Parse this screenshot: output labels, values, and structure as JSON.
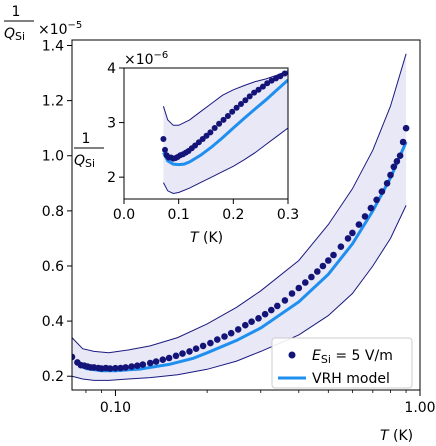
{
  "chart_data": [
    {
      "type": "scatter",
      "xscale": "log",
      "xlim": [
        0.072,
        1.0
      ],
      "ylim": [
        0.15,
        1.42
      ],
      "xlabel": {
        "italic": "T",
        "rest": " (K)"
      },
      "ylabel": {
        "num": "1",
        "den": "Q",
        "sub": "Si"
      },
      "offset_text": {
        "base": "×10",
        "exp": "−5"
      },
      "xticks": [
        {
          "value": 0.1,
          "label": "0.10"
        },
        {
          "value": 1.0,
          "label": "1.00"
        }
      ],
      "yticks": [
        0.2,
        0.4,
        0.6,
        0.8,
        1.0,
        1.2,
        1.4
      ],
      "ytick_labels": [
        "0.2",
        "0.4",
        "0.6",
        "0.8",
        "1.0",
        "1.2",
        "1.4"
      ],
      "legend": {
        "placement": "lower-right",
        "entries": [
          {
            "kind": "marker",
            "label_main": "E",
            "label_sub": "Si",
            "label_rest": " = 5 V/m"
          },
          {
            "kind": "line",
            "label": "VRH model"
          }
        ]
      },
      "band": {
        "color": "#e8e8f7",
        "edge_color": "#1a1a80",
        "x": [
          0.072,
          0.078,
          0.085,
          0.095,
          0.11,
          0.13,
          0.16,
          0.2,
          0.25,
          0.3,
          0.4,
          0.5,
          0.6,
          0.7,
          0.8,
          0.9
        ],
        "upper": [
          0.34,
          0.3,
          0.29,
          0.285,
          0.295,
          0.31,
          0.34,
          0.39,
          0.45,
          0.51,
          0.62,
          0.75,
          0.88,
          1.02,
          1.18,
          1.37
        ],
        "lower": [
          0.2,
          0.19,
          0.185,
          0.185,
          0.19,
          0.195,
          0.205,
          0.225,
          0.255,
          0.29,
          0.35,
          0.42,
          0.5,
          0.6,
          0.7,
          0.82
        ]
      },
      "series": [
        {
          "name": "VRH model",
          "kind": "line",
          "color": "#1f8fef",
          "x": [
            0.075,
            0.08,
            0.09,
            0.1,
            0.12,
            0.15,
            0.18,
            0.2,
            0.25,
            0.3,
            0.4,
            0.5,
            0.6,
            0.7,
            0.8,
            0.9
          ],
          "y": [
            0.245,
            0.228,
            0.22,
            0.22,
            0.226,
            0.243,
            0.265,
            0.285,
            0.33,
            0.375,
            0.47,
            0.57,
            0.68,
            0.8,
            0.92,
            1.05
          ]
        },
        {
          "kind": "scatter",
          "color": "#141478",
          "x": [
            0.072,
            0.075,
            0.077,
            0.079,
            0.081,
            0.083,
            0.085,
            0.088,
            0.09,
            0.093,
            0.096,
            0.1,
            0.104,
            0.108,
            0.113,
            0.118,
            0.123,
            0.13,
            0.136,
            0.143,
            0.15,
            0.158,
            0.166,
            0.175,
            0.184,
            0.194,
            0.205,
            0.216,
            0.228,
            0.24,
            0.253,
            0.267,
            0.28,
            0.295,
            0.31,
            0.325,
            0.34,
            0.36,
            0.38,
            0.4,
            0.42,
            0.44,
            0.46,
            0.48,
            0.5,
            0.52,
            0.55,
            0.58,
            0.6,
            0.63,
            0.66,
            0.69,
            0.72,
            0.75,
            0.78,
            0.8,
            0.82,
            0.84,
            0.86,
            0.88,
            0.9
          ],
          "y": [
            0.27,
            0.25,
            0.24,
            0.238,
            0.235,
            0.232,
            0.232,
            0.23,
            0.228,
            0.23,
            0.228,
            0.229,
            0.23,
            0.232,
            0.235,
            0.238,
            0.242,
            0.248,
            0.253,
            0.26,
            0.266,
            0.274,
            0.282,
            0.29,
            0.3,
            0.31,
            0.32,
            0.333,
            0.344,
            0.356,
            0.37,
            0.385,
            0.398,
            0.41,
            0.425,
            0.44,
            0.455,
            0.475,
            0.5,
            0.52,
            0.54,
            0.56,
            0.58,
            0.6,
            0.62,
            0.64,
            0.67,
            0.7,
            0.72,
            0.75,
            0.78,
            0.81,
            0.84,
            0.87,
            0.9,
            0.93,
            0.96,
            0.98,
            1.0,
            1.05,
            1.1
          ]
        }
      ]
    },
    {
      "type": "scatter",
      "inset": true,
      "xlim": [
        0.0,
        0.3
      ],
      "ylim": [
        1.6,
        4.0
      ],
      "xlabel": {
        "italic": "T",
        "rest": " (K)"
      },
      "ylabel": {
        "num": "1",
        "den": "Q",
        "sub": "Si"
      },
      "offset_text": {
        "base": "×10",
        "exp": "−6"
      },
      "xticks": [
        0.0,
        0.1,
        0.2,
        0.3
      ],
      "xtick_labels": [
        "0.0",
        "0.1",
        "0.2",
        "0.3"
      ],
      "yticks": [
        2,
        3,
        4
      ],
      "ytick_labels": [
        "2",
        "3",
        "4"
      ],
      "band": {
        "color": "#e8e8f7",
        "edge_color": "#1a1a80",
        "x": [
          0.072,
          0.08,
          0.09,
          0.1,
          0.12,
          0.14,
          0.16,
          0.18,
          0.2,
          0.22,
          0.24,
          0.26,
          0.28,
          0.3
        ],
        "upper": [
          3.3,
          3.05,
          2.95,
          2.95,
          3.05,
          3.2,
          3.35,
          3.5,
          3.6,
          3.68,
          3.75,
          3.8,
          3.87,
          3.95
        ],
        "lower": [
          1.9,
          1.75,
          1.7,
          1.72,
          1.8,
          1.9,
          2.0,
          2.1,
          2.2,
          2.32,
          2.45,
          2.6,
          2.75,
          2.9
        ]
      },
      "series": [
        {
          "name": "VRH model",
          "kind": "line",
          "color": "#1f8fef",
          "x": [
            0.072,
            0.08,
            0.09,
            0.1,
            0.11,
            0.12,
            0.14,
            0.16,
            0.18,
            0.2,
            0.22,
            0.24,
            0.26,
            0.28,
            0.3
          ],
          "y": [
            2.45,
            2.3,
            2.24,
            2.23,
            2.24,
            2.28,
            2.4,
            2.55,
            2.72,
            2.9,
            3.08,
            3.25,
            3.42,
            3.6,
            3.78
          ]
        },
        {
          "kind": "scatter",
          "color": "#141478",
          "x": [
            0.072,
            0.075,
            0.078,
            0.082,
            0.086,
            0.09,
            0.094,
            0.098,
            0.103,
            0.108,
            0.113,
            0.118,
            0.124,
            0.13,
            0.137,
            0.144,
            0.151,
            0.158,
            0.166,
            0.174,
            0.182,
            0.19,
            0.198,
            0.206,
            0.214,
            0.222,
            0.23,
            0.238,
            0.246,
            0.254,
            0.262,
            0.27,
            0.278,
            0.286,
            0.294
          ],
          "y": [
            2.7,
            2.5,
            2.4,
            2.36,
            2.36,
            2.34,
            2.35,
            2.37,
            2.4,
            2.42,
            2.45,
            2.48,
            2.53,
            2.58,
            2.64,
            2.7,
            2.76,
            2.82,
            2.9,
            2.98,
            3.05,
            3.12,
            3.2,
            3.27,
            3.34,
            3.41,
            3.48,
            3.55,
            3.6,
            3.66,
            3.72,
            3.77,
            3.81,
            3.85,
            3.9
          ]
        }
      ]
    }
  ]
}
